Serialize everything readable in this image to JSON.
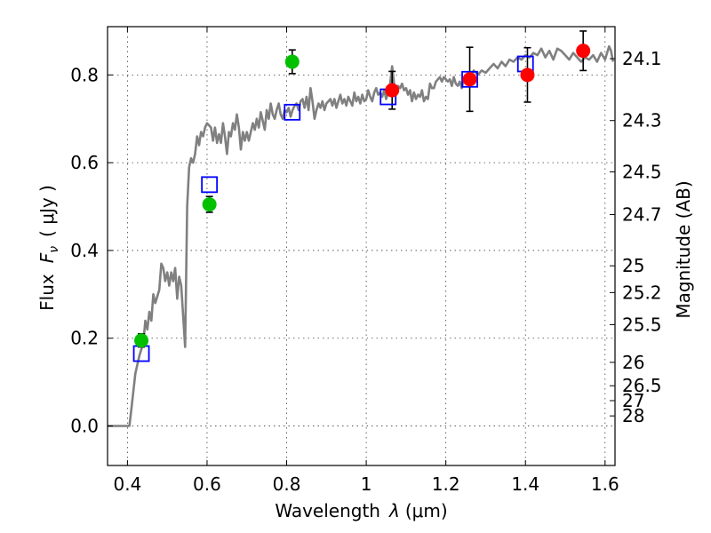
{
  "chart_data": {
    "type": "scatter",
    "xlabel": "Wavelength",
    "xlabel_symbol": "λ",
    "xlabel_unit": "(μm)",
    "ylabel": "Flux",
    "ylabel_symbol": "F",
    "ylabel_subscript": "ν",
    "ylabel_unit": "( μJy )",
    "y2label": "Magnitude (AB)",
    "xlim": [
      0.35,
      1.625
    ],
    "ylim": [
      -0.09,
      0.91
    ],
    "x_ticks": [
      0.4,
      0.6,
      0.8,
      1.0,
      1.2,
      1.4,
      1.6
    ],
    "x_tick_labels": [
      "0.4",
      "0.6",
      "0.8",
      "1",
      "1.2",
      "1.4",
      "1.6"
    ],
    "y_ticks": [
      0.0,
      0.2,
      0.4,
      0.6,
      0.8
    ],
    "y_tick_labels": [
      "0.0",
      "0.2",
      "0.4",
      "0.6",
      "0.8"
    ],
    "mag_ticks": [
      {
        "label": "24.1",
        "flux": 0.837
      },
      {
        "label": "24.3",
        "flux": 0.696
      },
      {
        "label": "24.5",
        "flux": 0.579
      },
      {
        "label": "24.7",
        "flux": 0.482
      },
      {
        "label": "25",
        "flux": 0.365
      },
      {
        "label": "25.2",
        "flux": 0.304
      },
      {
        "label": "25.5",
        "flux": 0.231
      },
      {
        "label": "26",
        "flux": 0.145
      },
      {
        "label": "26.5",
        "flux": 0.0917
      },
      {
        "label": "27",
        "flux": 0.0578
      },
      {
        "label": "28",
        "flux": 0.023
      }
    ],
    "grid": true,
    "model_spectrum": {
      "color": "#808080",
      "points": [
        [
          0.35,
          0.0
        ],
        [
          0.4,
          0.0
        ],
        [
          0.405,
          0.0
        ],
        [
          0.41,
          0.04
        ],
        [
          0.415,
          0.08
        ],
        [
          0.42,
          0.12
        ],
        [
          0.43,
          0.16
        ],
        [
          0.44,
          0.19
        ],
        [
          0.445,
          0.24
        ],
        [
          0.45,
          0.22
        ],
        [
          0.455,
          0.26
        ],
        [
          0.46,
          0.24
        ],
        [
          0.465,
          0.3
        ],
        [
          0.47,
          0.28
        ],
        [
          0.48,
          0.31
        ],
        [
          0.485,
          0.37
        ],
        [
          0.49,
          0.36
        ],
        [
          0.495,
          0.33
        ],
        [
          0.5,
          0.35
        ],
        [
          0.505,
          0.32
        ],
        [
          0.51,
          0.35
        ],
        [
          0.515,
          0.33
        ],
        [
          0.52,
          0.36
        ],
        [
          0.525,
          0.29
        ],
        [
          0.53,
          0.34
        ],
        [
          0.535,
          0.32
        ],
        [
          0.54,
          0.25
        ],
        [
          0.545,
          0.18
        ],
        [
          0.55,
          0.5
        ],
        [
          0.555,
          0.59
        ],
        [
          0.56,
          0.61
        ],
        [
          0.565,
          0.6
        ],
        [
          0.57,
          0.62
        ],
        [
          0.575,
          0.66
        ],
        [
          0.58,
          0.64
        ],
        [
          0.585,
          0.67
        ],
        [
          0.59,
          0.66
        ],
        [
          0.595,
          0.68
        ],
        [
          0.6,
          0.69
        ],
        [
          0.605,
          0.685
        ],
        [
          0.61,
          0.68
        ],
        [
          0.615,
          0.65
        ],
        [
          0.62,
          0.68
        ],
        [
          0.625,
          0.645
        ],
        [
          0.63,
          0.665
        ],
        [
          0.635,
          0.645
        ],
        [
          0.64,
          0.69
        ],
        [
          0.645,
          0.66
        ],
        [
          0.65,
          0.62
        ],
        [
          0.655,
          0.67
        ],
        [
          0.66,
          0.66
        ],
        [
          0.665,
          0.69
        ],
        [
          0.67,
          0.675
        ],
        [
          0.675,
          0.71
        ],
        [
          0.68,
          0.68
        ],
        [
          0.685,
          0.63
        ],
        [
          0.69,
          0.67
        ],
        [
          0.695,
          0.65
        ],
        [
          0.7,
          0.67
        ],
        [
          0.705,
          0.65
        ],
        [
          0.71,
          0.67
        ],
        [
          0.715,
          0.69
        ],
        [
          0.72,
          0.675
        ],
        [
          0.725,
          0.7
        ],
        [
          0.73,
          0.68
        ],
        [
          0.735,
          0.715
        ],
        [
          0.74,
          0.695
        ],
        [
          0.745,
          0.675
        ],
        [
          0.75,
          0.72
        ],
        [
          0.755,
          0.7
        ],
        [
          0.76,
          0.735
        ],
        [
          0.765,
          0.71
        ],
        [
          0.77,
          0.7
        ],
        [
          0.775,
          0.72
        ],
        [
          0.78,
          0.735
        ],
        [
          0.785,
          0.71
        ],
        [
          0.79,
          0.7
        ],
        [
          0.795,
          0.72
        ],
        [
          0.8,
          0.715
        ],
        [
          0.805,
          0.725
        ],
        [
          0.81,
          0.705
        ],
        [
          0.815,
          0.72
        ],
        [
          0.82,
          0.73
        ],
        [
          0.825,
          0.735
        ],
        [
          0.83,
          0.72
        ],
        [
          0.835,
          0.74
        ],
        [
          0.84,
          0.745
        ],
        [
          0.845,
          0.725
        ],
        [
          0.85,
          0.75
        ],
        [
          0.855,
          0.72
        ],
        [
          0.86,
          0.77
        ],
        [
          0.865,
          0.74
        ],
        [
          0.87,
          0.7
        ],
        [
          0.875,
          0.72
        ],
        [
          0.88,
          0.735
        ],
        [
          0.885,
          0.725
        ],
        [
          0.89,
          0.74
        ],
        [
          0.895,
          0.72
        ],
        [
          0.9,
          0.735
        ],
        [
          0.91,
          0.745
        ],
        [
          0.915,
          0.73
        ],
        [
          0.92,
          0.745
        ],
        [
          0.925,
          0.725
        ],
        [
          0.93,
          0.74
        ],
        [
          0.935,
          0.755
        ],
        [
          0.94,
          0.735
        ],
        [
          0.945,
          0.745
        ],
        [
          0.95,
          0.73
        ],
        [
          0.955,
          0.75
        ],
        [
          0.96,
          0.74
        ],
        [
          0.965,
          0.73
        ],
        [
          0.97,
          0.76
        ],
        [
          0.975,
          0.74
        ],
        [
          0.98,
          0.75
        ],
        [
          0.985,
          0.735
        ],
        [
          0.99,
          0.755
        ],
        [
          0.995,
          0.74
        ],
        [
          1.0,
          0.745
        ],
        [
          1.005,
          0.765
        ],
        [
          1.01,
          0.75
        ],
        [
          1.015,
          0.74
        ],
        [
          1.02,
          0.76
        ],
        [
          1.025,
          0.77
        ],
        [
          1.03,
          0.755
        ],
        [
          1.035,
          0.76
        ],
        [
          1.04,
          0.75
        ],
        [
          1.045,
          0.765
        ],
        [
          1.05,
          0.745
        ],
        [
          1.055,
          0.76
        ],
        [
          1.06,
          0.78
        ],
        [
          1.065,
          0.82
        ],
        [
          1.07,
          0.78
        ],
        [
          1.075,
          0.76
        ],
        [
          1.08,
          0.775
        ],
        [
          1.085,
          0.77
        ],
        [
          1.09,
          0.78
        ],
        [
          1.095,
          0.765
        ],
        [
          1.1,
          0.77
        ],
        [
          1.105,
          0.755
        ],
        [
          1.11,
          0.765
        ],
        [
          1.115,
          0.74
        ],
        [
          1.12,
          0.76
        ],
        [
          1.125,
          0.745
        ],
        [
          1.13,
          0.755
        ],
        [
          1.135,
          0.75
        ],
        [
          1.14,
          0.765
        ],
        [
          1.145,
          0.74
        ],
        [
          1.15,
          0.75
        ],
        [
          1.155,
          0.745
        ],
        [
          1.16,
          0.78
        ],
        [
          1.165,
          0.77
        ],
        [
          1.17,
          0.77
        ],
        [
          1.175,
          0.785
        ],
        [
          1.18,
          0.79
        ],
        [
          1.185,
          0.795
        ],
        [
          1.19,
          0.785
        ],
        [
          1.195,
          0.795
        ],
        [
          1.2,
          0.79
        ],
        [
          1.205,
          0.785
        ],
        [
          1.21,
          0.79
        ],
        [
          1.215,
          0.775
        ],
        [
          1.22,
          0.795
        ],
        [
          1.225,
          0.78
        ],
        [
          1.23,
          0.775
        ],
        [
          1.235,
          0.785
        ],
        [
          1.24,
          0.77
        ],
        [
          1.245,
          0.79
        ],
        [
          1.25,
          0.79
        ],
        [
          1.26,
          0.795
        ],
        [
          1.27,
          0.81
        ],
        [
          1.28,
          0.8
        ],
        [
          1.29,
          0.81
        ],
        [
          1.3,
          0.805
        ],
        [
          1.31,
          0.815
        ],
        [
          1.32,
          0.825
        ],
        [
          1.33,
          0.815
        ],
        [
          1.34,
          0.83
        ],
        [
          1.35,
          0.82
        ],
        [
          1.36,
          0.835
        ],
        [
          1.37,
          0.83
        ],
        [
          1.38,
          0.84
        ],
        [
          1.39,
          0.835
        ],
        [
          1.4,
          0.845
        ],
        [
          1.41,
          0.84
        ],
        [
          1.42,
          0.85
        ],
        [
          1.43,
          0.845
        ],
        [
          1.44,
          0.86
        ],
        [
          1.45,
          0.84
        ],
        [
          1.46,
          0.855
        ],
        [
          1.47,
          0.835
        ],
        [
          1.48,
          0.86
        ],
        [
          1.49,
          0.855
        ],
        [
          1.5,
          0.845
        ],
        [
          1.51,
          0.835
        ],
        [
          1.52,
          0.85
        ],
        [
          1.53,
          0.84
        ],
        [
          1.54,
          0.83
        ],
        [
          1.55,
          0.84
        ],
        [
          1.56,
          0.835
        ],
        [
          1.57,
          0.845
        ],
        [
          1.58,
          0.83
        ],
        [
          1.59,
          0.85
        ],
        [
          1.6,
          0.835
        ],
        [
          1.61,
          0.865
        ],
        [
          1.615,
          0.855
        ],
        [
          1.62,
          0.83
        ]
      ]
    },
    "model_photometry": {
      "color": "#0000ff",
      "marker": "open-square",
      "points": [
        {
          "x": 0.435,
          "y": 0.165
        },
        {
          "x": 0.606,
          "y": 0.55
        },
        {
          "x": 0.814,
          "y": 0.715
        },
        {
          "x": 1.055,
          "y": 0.75
        },
        {
          "x": 1.26,
          "y": 0.79
        },
        {
          "x": 1.4,
          "y": 0.825
        }
      ]
    },
    "observed_green": {
      "color": "#00c000",
      "marker": "filled-circle",
      "points": [
        {
          "x": 0.435,
          "y": 0.195,
          "err": 0.015
        },
        {
          "x": 0.606,
          "y": 0.505,
          "err": 0.018
        },
        {
          "x": 0.814,
          "y": 0.83,
          "err": 0.027
        }
      ]
    },
    "observed_red": {
      "color": "#ff0000",
      "marker": "filled-circle",
      "points": [
        {
          "x": 1.065,
          "y": 0.765,
          "err": 0.043
        },
        {
          "x": 1.26,
          "y": 0.79,
          "err": 0.073
        },
        {
          "x": 1.405,
          "y": 0.8,
          "err": 0.062
        },
        {
          "x": 1.545,
          "y": 0.855,
          "err": 0.045
        }
      ]
    }
  }
}
